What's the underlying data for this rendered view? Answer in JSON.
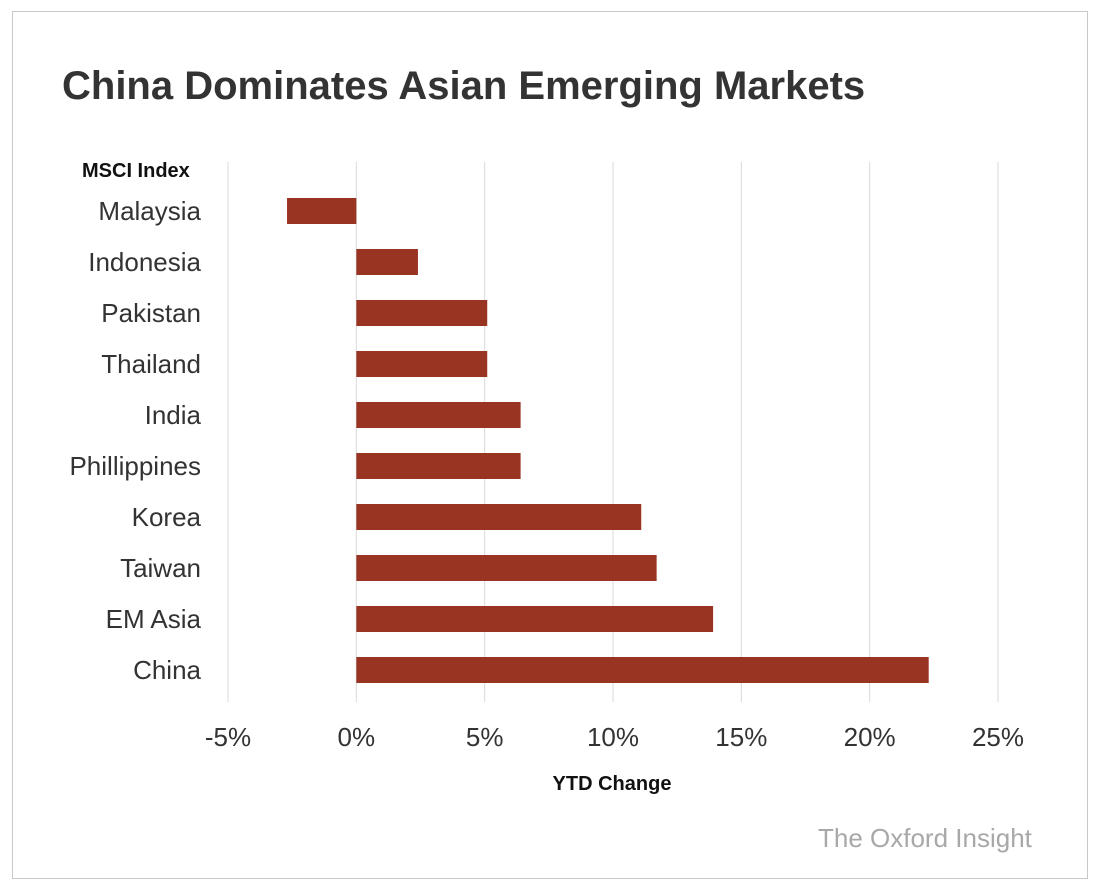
{
  "chart_data": {
    "type": "bar",
    "orientation": "horizontal",
    "title": "China Dominates Asian Emerging Markets",
    "category_axis_title": "MSCI Index",
    "xlabel": "YTD Change",
    "ylabel": "",
    "categories": [
      "Malaysia",
      "Indonesia",
      "Pakistan",
      "Thailand",
      "India",
      "Phillippines",
      "Korea",
      "Taiwan",
      "EM Asia",
      "China"
    ],
    "values": [
      -2.7,
      2.4,
      5.1,
      5.1,
      6.4,
      6.4,
      11.1,
      11.7,
      13.9,
      22.3
    ],
    "value_unit": "%",
    "xlim": [
      -5,
      25
    ],
    "xticks": [
      -5,
      0,
      5,
      10,
      15,
      20,
      25
    ],
    "xtick_labels": [
      "-5%",
      "0%",
      "5%",
      "10%",
      "15%",
      "20%",
      "25%"
    ],
    "grid": true,
    "bar_color": "#993322",
    "grid_color": "#d9d9d9"
  },
  "source": "The Oxford Insight"
}
